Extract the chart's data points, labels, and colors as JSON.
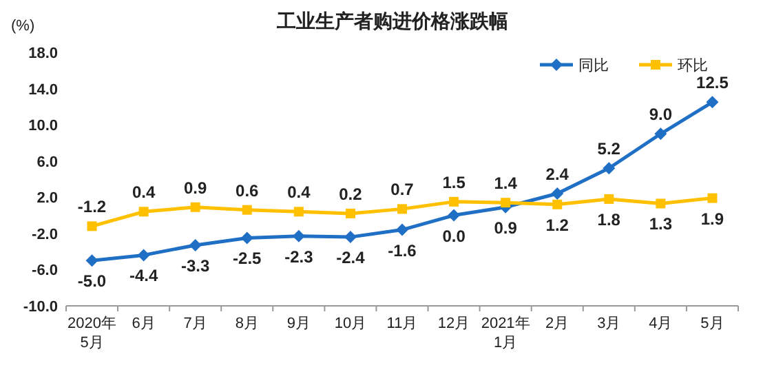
{
  "chart_data": {
    "type": "line",
    "title": "工业生产者购进价格涨跌幅",
    "ylabel": "(%)",
    "categories": [
      "2020年\n5月",
      "6月",
      "7月",
      "8月",
      "9月",
      "10月",
      "11月",
      "12月",
      "2021年\n1月",
      "2月",
      "3月",
      "4月",
      "5月"
    ],
    "series": [
      {
        "name": "同比",
        "color": "#1f6fc5",
        "marker": "diamond",
        "values": [
          -5.0,
          -4.4,
          -3.3,
          -2.5,
          -2.3,
          -2.4,
          -1.6,
          0.0,
          0.9,
          2.4,
          5.2,
          9.0,
          12.5
        ],
        "value_labels": [
          "-5.0",
          "-4.4",
          "-3.3",
          "-2.5",
          "-2.3",
          "-2.4",
          "-1.6",
          "0.0",
          "0.9",
          "2.4",
          "5.2",
          "9.0",
          "12.5"
        ]
      },
      {
        "name": "环比",
        "color": "#ffc000",
        "marker": "square",
        "values": [
          -1.2,
          0.4,
          0.9,
          0.6,
          0.4,
          0.2,
          0.7,
          1.5,
          1.4,
          1.2,
          1.8,
          1.3,
          1.9
        ],
        "value_labels": [
          "-1.2",
          "0.4",
          "0.9",
          "0.6",
          "0.4",
          "0.2",
          "0.7",
          "1.5",
          "1.4",
          "1.2",
          "1.8",
          "1.3",
          "1.9"
        ]
      }
    ],
    "ylim": [
      -10,
      18
    ],
    "yticks": [
      {
        "value": -10,
        "label": "-10.0"
      },
      {
        "value": -6,
        "label": "-6.0"
      },
      {
        "value": -2,
        "label": "-2.0"
      },
      {
        "value": 2,
        "label": "2.0"
      },
      {
        "value": 6,
        "label": "6.0"
      },
      {
        "value": 10,
        "label": "10.0"
      },
      {
        "value": 14,
        "label": "14.0"
      },
      {
        "value": 18,
        "label": "18.0"
      }
    ],
    "grid": false,
    "legend": "top right",
    "line_style": "solid"
  }
}
